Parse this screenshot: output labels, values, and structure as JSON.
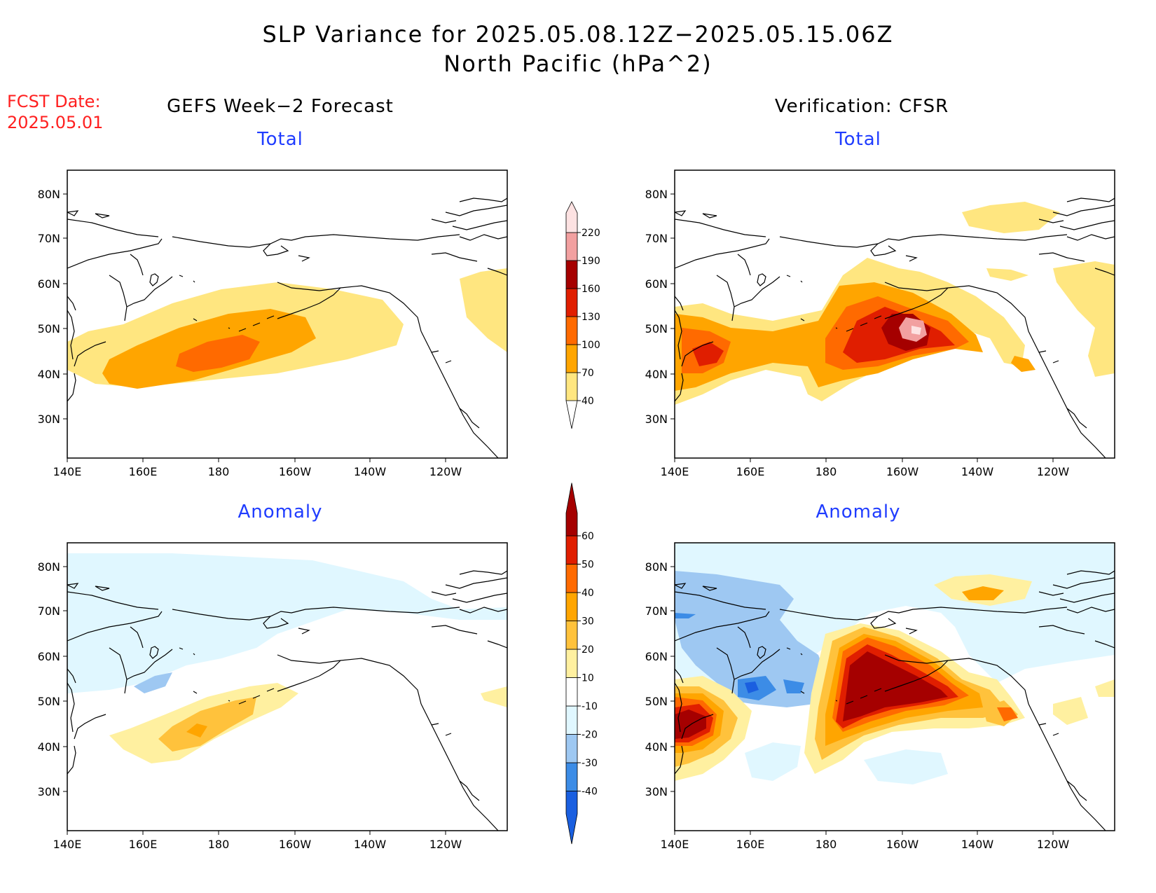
{
  "title": {
    "line1": "SLP Variance for 2025.05.08.12Z−2025.05.15.06Z",
    "line2": "North Pacific (hPa^2)"
  },
  "fcst": {
    "label": "FCST Date:",
    "date": "2025.05.01"
  },
  "columns": {
    "left": "GEFS Week−2 Forecast",
    "right": "Verification: CFSR"
  },
  "panel_titles": {
    "top": "Total",
    "bottom": "Anomaly"
  },
  "lat_ticks": [
    "80N",
    "70N",
    "60N",
    "50N",
    "40N",
    "30N"
  ],
  "lon_ticks": [
    "140E",
    "160E",
    "180",
    "160W",
    "140W",
    "120W"
  ],
  "total_colorbar": {
    "labels": [
      "40",
      "70",
      "100",
      "130",
      "160",
      "190",
      "220"
    ],
    "colors": [
      "#ffe680",
      "#ffa500",
      "#ff6a00",
      "#e01e00",
      "#a50000",
      "#f2a0a0",
      "#fde2e2"
    ]
  },
  "anomaly_colorbar": {
    "labels": [
      "-40",
      "-30",
      "-20",
      "-10",
      "10",
      "20",
      "30",
      "40",
      "50",
      "60"
    ],
    "colors": [
      "#1a5fe0",
      "#3c8ce6",
      "#9ec8f2",
      "#e0f7ff",
      "#ffffff",
      "#fff0a0",
      "#ffc23c",
      "#ffa500",
      "#ff6a00",
      "#e01e00",
      "#a50000"
    ]
  },
  "colors": {
    "fcst": "#ff2020",
    "subtitle": "#1f3cff"
  }
}
